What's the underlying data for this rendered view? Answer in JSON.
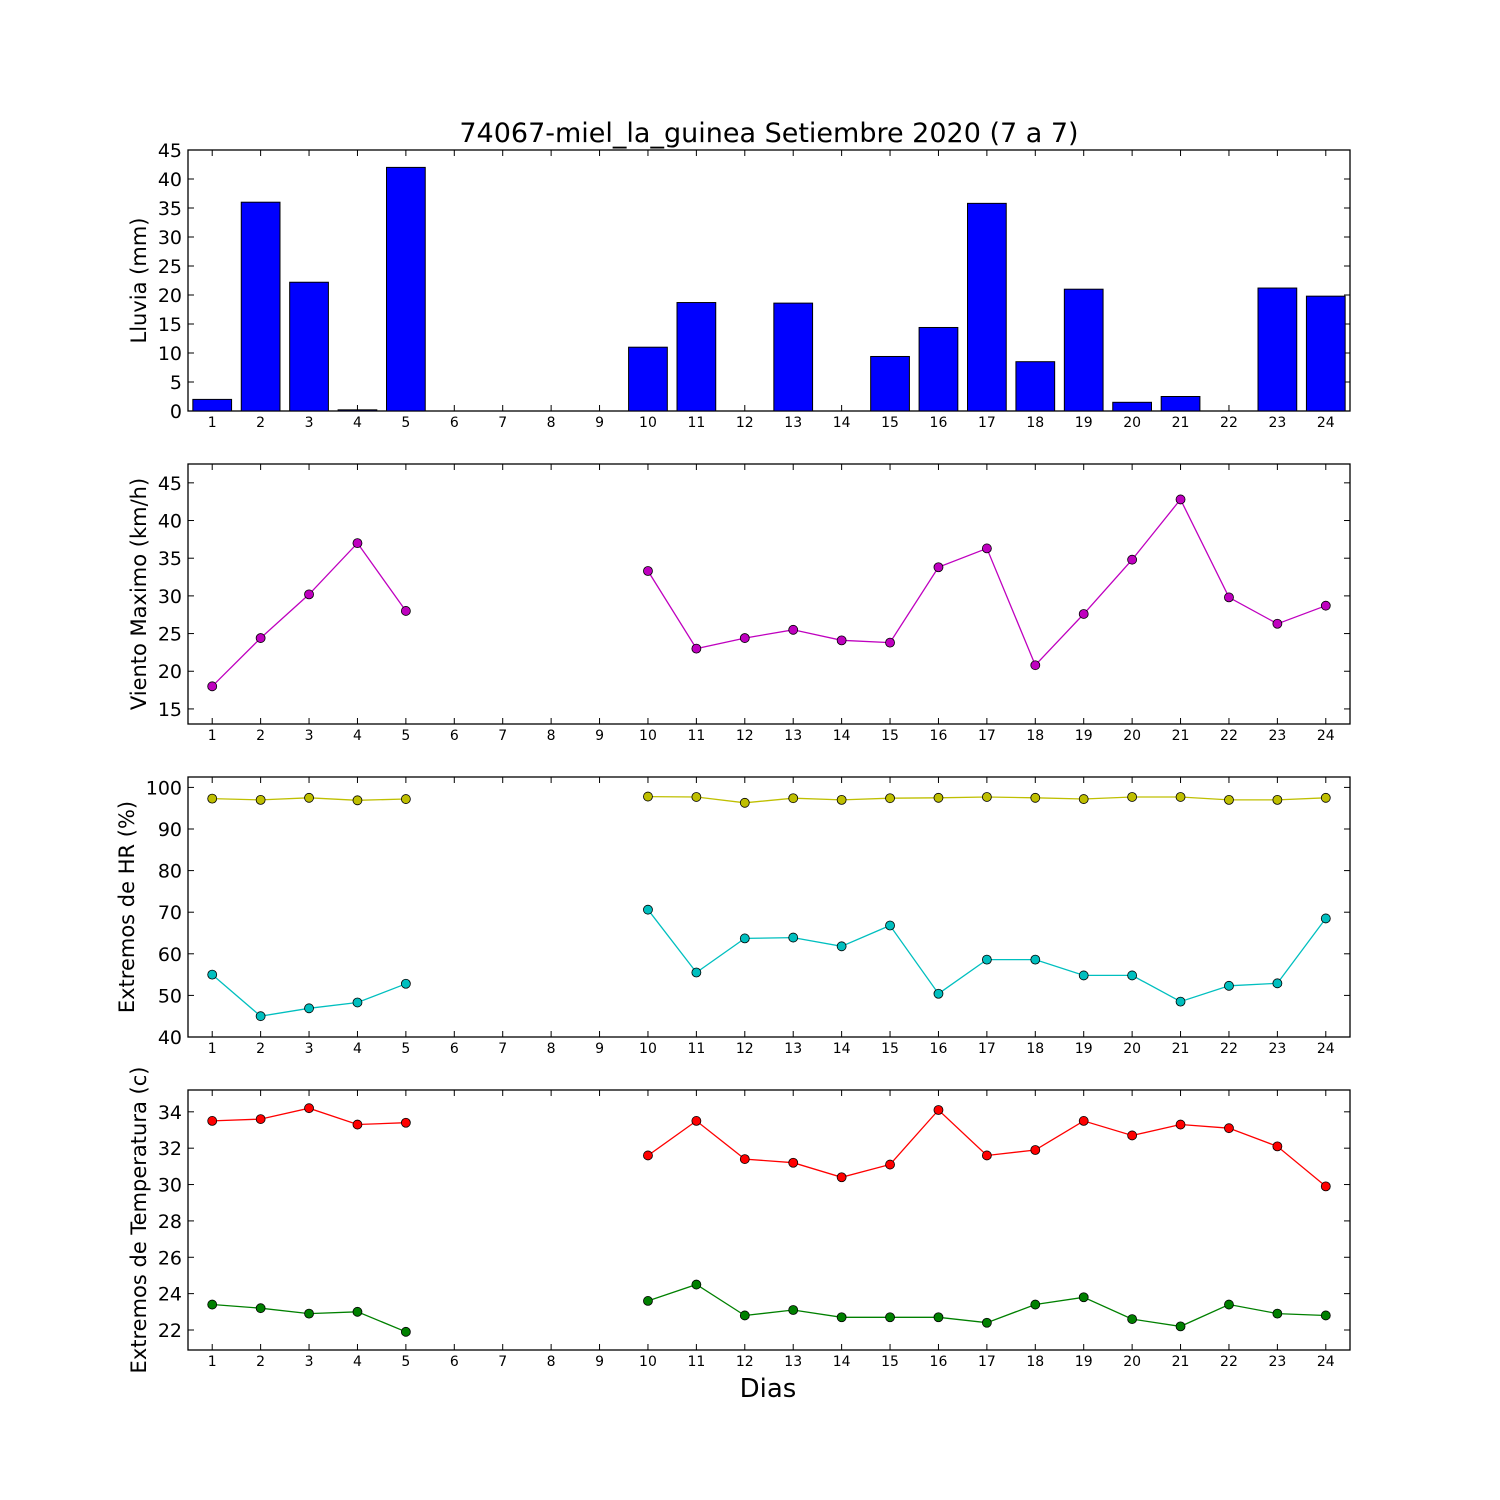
{
  "figure": {
    "title": "74067-miel_la_guinea Setiembre 2020  (7 a 7)",
    "xlabel": "Dias"
  },
  "chart_data": [
    {
      "type": "bar",
      "ylabel": "Lluvia (mm)",
      "ylim": [
        0,
        45
      ],
      "yticks": [
        0,
        5,
        10,
        15,
        20,
        25,
        30,
        35,
        40,
        45
      ],
      "categories": [
        "1",
        "2",
        "3",
        "4",
        "5",
        "6",
        "7",
        "8",
        "9",
        "10",
        "11",
        "12",
        "13",
        "14",
        "15",
        "16",
        "17",
        "18",
        "19",
        "20",
        "21",
        "22",
        "23",
        "24"
      ],
      "series": [
        {
          "color": "#0000ff",
          "values": [
            2.0,
            36.0,
            22.2,
            0.2,
            42.0,
            0,
            0,
            0,
            0,
            11.0,
            18.7,
            0,
            18.6,
            0,
            9.4,
            14.4,
            35.8,
            8.5,
            21.0,
            1.5,
            2.5,
            0,
            21.2,
            19.8
          ]
        }
      ]
    },
    {
      "type": "line",
      "ylabel": "Viento Maximo (km/h)",
      "ylim": [
        13,
        47.5
      ],
      "yticks": [
        15,
        20,
        25,
        30,
        35,
        40,
        45
      ],
      "categories": [
        "1",
        "2",
        "3",
        "4",
        "5",
        "6",
        "7",
        "8",
        "9",
        "10",
        "11",
        "12",
        "13",
        "14",
        "15",
        "16",
        "17",
        "18",
        "19",
        "20",
        "21",
        "22",
        "23",
        "24"
      ],
      "series": [
        {
          "color": "#bf00bf",
          "values": [
            18.0,
            24.4,
            30.2,
            37.0,
            28.0,
            null,
            null,
            null,
            null,
            33.3,
            23.0,
            24.4,
            25.5,
            24.1,
            23.8,
            33.8,
            36.3,
            20.8,
            27.6,
            34.8,
            42.8,
            29.8,
            26.3,
            28.7
          ]
        }
      ]
    },
    {
      "type": "line",
      "ylabel": "Extremos de HR (%)",
      "ylim": [
        40,
        102.5
      ],
      "yticks": [
        40,
        50,
        60,
        70,
        80,
        90,
        100
      ],
      "categories": [
        "1",
        "2",
        "3",
        "4",
        "5",
        "6",
        "7",
        "8",
        "9",
        "10",
        "11",
        "12",
        "13",
        "14",
        "15",
        "16",
        "17",
        "18",
        "19",
        "20",
        "21",
        "22",
        "23",
        "24"
      ],
      "series": [
        {
          "color": "#bfbf00",
          "values": [
            97.3,
            97.0,
            97.5,
            96.9,
            97.2,
            null,
            null,
            null,
            null,
            97.8,
            97.7,
            96.3,
            97.4,
            97.0,
            97.4,
            97.5,
            97.7,
            97.5,
            97.2,
            97.7,
            97.7,
            97.0,
            97.0,
            97.5
          ]
        },
        {
          "color": "#00bfbf",
          "values": [
            55.0,
            45.0,
            46.9,
            48.3,
            52.8,
            null,
            null,
            null,
            null,
            70.6,
            55.5,
            63.7,
            63.9,
            61.8,
            66.8,
            50.4,
            58.6,
            58.6,
            54.8,
            54.8,
            48.5,
            52.3,
            52.9,
            68.5
          ]
        }
      ]
    },
    {
      "type": "line",
      "ylabel": "Extremos de Temperatura (c)",
      "ylim": [
        20.9,
        35.2
      ],
      "yticks": [
        22,
        24,
        26,
        28,
        30,
        32,
        34
      ],
      "categories": [
        "1",
        "2",
        "3",
        "4",
        "5",
        "6",
        "7",
        "8",
        "9",
        "10",
        "11",
        "12",
        "13",
        "14",
        "15",
        "16",
        "17",
        "18",
        "19",
        "20",
        "21",
        "22",
        "23",
        "24"
      ],
      "series": [
        {
          "color": "#ff0000",
          "values": [
            33.5,
            33.6,
            34.2,
            33.3,
            33.4,
            null,
            null,
            null,
            null,
            31.6,
            33.5,
            31.4,
            31.2,
            30.4,
            31.1,
            34.1,
            31.6,
            31.9,
            33.5,
            32.7,
            33.3,
            33.1,
            32.1,
            29.9
          ]
        },
        {
          "color": "#008000",
          "values": [
            23.4,
            23.2,
            22.9,
            23.0,
            21.9,
            null,
            null,
            null,
            null,
            23.6,
            24.5,
            22.8,
            23.1,
            22.7,
            22.7,
            22.7,
            22.4,
            23.4,
            23.8,
            22.6,
            22.2,
            23.4,
            22.9,
            22.8
          ]
        }
      ]
    }
  ]
}
